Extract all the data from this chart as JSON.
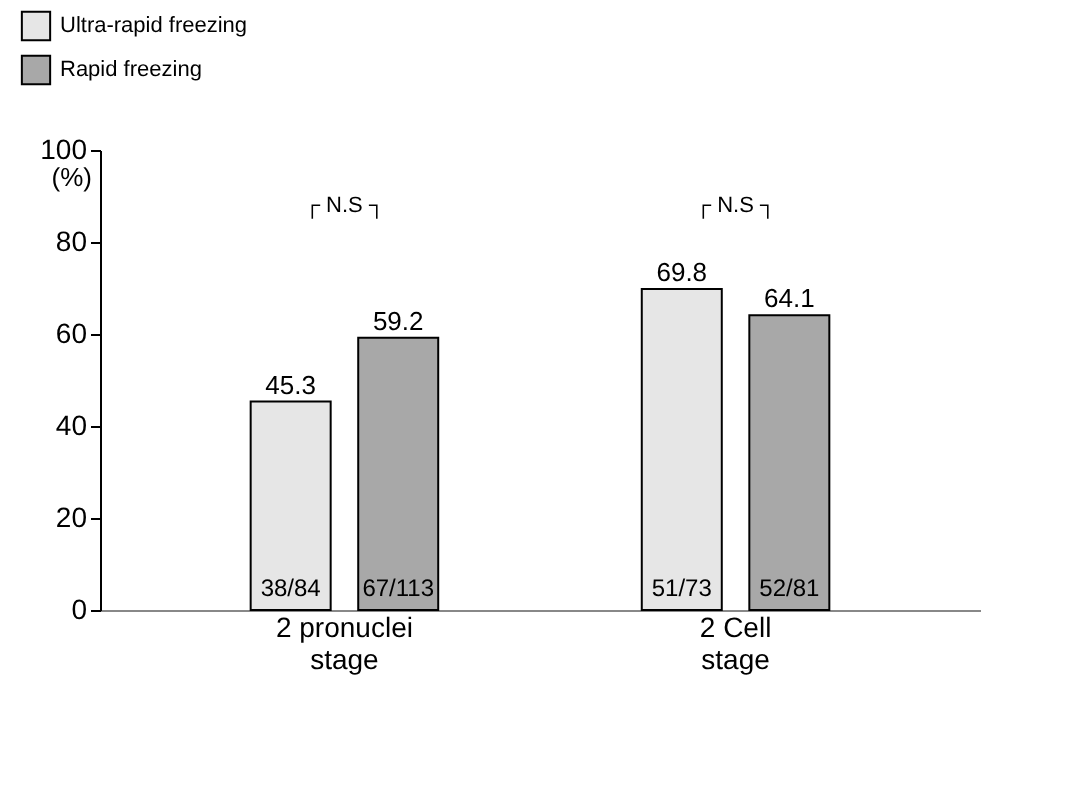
{
  "chart_data": {
    "type": "bar",
    "ylabel": "(%)",
    "categories": [
      "2 pronuclei stage",
      "2 Cell stage"
    ],
    "series": [
      {
        "name": "Ultra-rapid freezing",
        "color": "#e6e6e6",
        "values": [
          45.3,
          69.8
        ]
      },
      {
        "name": "Rapid freezing",
        "color": "#a8a8a8",
        "values": [
          59.2,
          64.1
        ]
      }
    ],
    "ylim": [
      0,
      100
    ],
    "yticks": [
      0,
      20,
      40,
      60,
      80,
      100
    ],
    "data_labels": true,
    "grid": false,
    "legend": "top left",
    "annotations": [
      "38/84",
      "67/113",
      "51/73",
      "52/81",
      "┌ N.S ┐",
      "┌ N.S ┐"
    ]
  }
}
